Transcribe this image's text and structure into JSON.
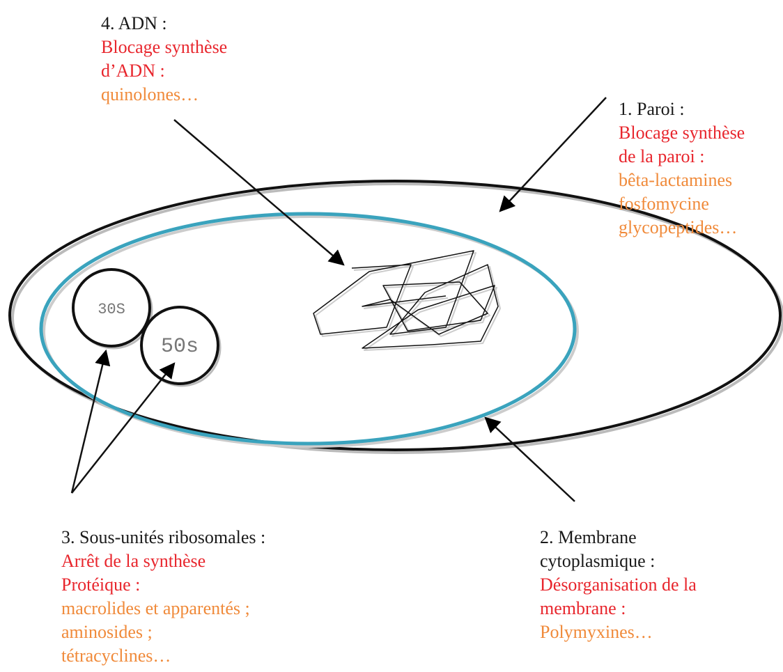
{
  "wall": {
    "title": "1. Paroi :",
    "action": [
      "Blocage synthèse",
      "de la paroi :"
    ],
    "drugs": [
      "bêta-lactamines",
      "fosfomycine",
      "glycopeptides…"
    ]
  },
  "membrane": {
    "title": [
      "2. Membrane",
      "cytoplasmique :"
    ],
    "action": [
      "Désorganisation de la",
      "membrane :"
    ],
    "drugs": [
      "Polymyxines…"
    ]
  },
  "ribosomes": {
    "title": "3. Sous-unités ribosomales :",
    "action": [
      "Arrêt de la synthèse",
      "Protéique :"
    ],
    "drugs": [
      "macrolides et apparentés ;",
      "aminosides ;",
      "tétracyclines…"
    ],
    "units": [
      "30S",
      "50s"
    ]
  },
  "dna": {
    "title": "4. ADN :",
    "action": [
      "Blocage synthèse",
      "d’ADN :"
    ],
    "drugs": [
      "quinolones…"
    ]
  }
}
